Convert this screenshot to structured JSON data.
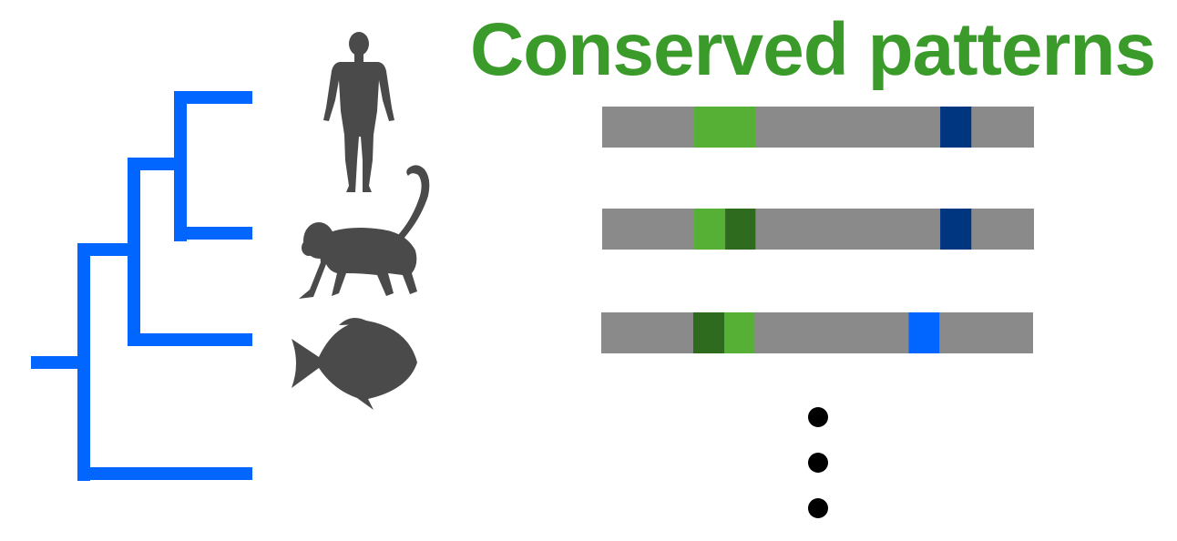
{
  "title": "Conserved patterns",
  "colors": {
    "title": "#3a9a2a",
    "tree": "#0066ff",
    "silhouette": "#4a4a4a",
    "track": "#8a8a8a",
    "light_green": "#55b035",
    "dark_green": "#2e6b1e",
    "navy": "#003580",
    "bright_blue": "#0066ff",
    "dots": "#000000"
  },
  "icons": [
    "human-silhouette-icon",
    "monkey-silhouette-icon",
    "fish-silhouette-icon"
  ],
  "tracks": [
    {
      "segments": [
        {
          "color": "light_green",
          "start": 0.213,
          "end": 0.355
        },
        {
          "color": "navy",
          "start": 0.783,
          "end": 0.855
        }
      ]
    },
    {
      "segments": [
        {
          "color": "light_green",
          "start": 0.213,
          "end": 0.285
        },
        {
          "color": "dark_green",
          "start": 0.285,
          "end": 0.355
        },
        {
          "color": "navy",
          "start": 0.783,
          "end": 0.855
        }
      ]
    },
    {
      "segments": [
        {
          "color": "dark_green",
          "start": 0.213,
          "end": 0.285
        },
        {
          "color": "light_green",
          "start": 0.285,
          "end": 0.355
        },
        {
          "color": "bright_blue",
          "start": 0.712,
          "end": 0.783
        }
      ]
    }
  ],
  "continuation_dots": 3
}
